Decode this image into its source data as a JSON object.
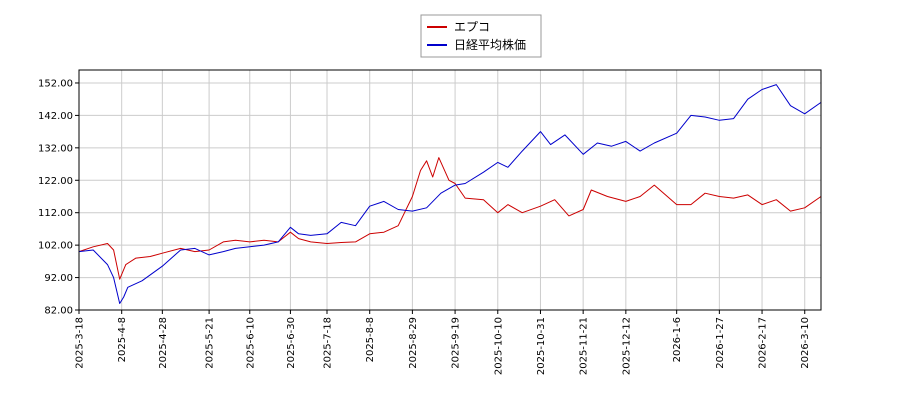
{
  "chart_data": {
    "type": "line",
    "title": "",
    "xlabel": "",
    "ylabel": "",
    "ylim": [
      82,
      156
    ],
    "yticks": [
      "82.00",
      "92.00",
      "102.00",
      "112.00",
      "122.00",
      "132.00",
      "142.00",
      "152.00"
    ],
    "xticks": [
      "2025-3-18",
      "2025-4-8",
      "2025-4-28",
      "2025-5-21",
      "2025-6-10",
      "2025-6-30",
      "2025-7-18",
      "2025-8-8",
      "2025-8-29",
      "2025-9-19",
      "2025-10-10",
      "2025-10-31",
      "2025-11-21",
      "2025-12-12",
      "2026-1-6",
      "2026-1-27",
      "2026-2-17",
      "2026-3-10"
    ],
    "grid": true,
    "legend_position": "top-center",
    "series": [
      {
        "name": "エプコ",
        "color": "#cc0000",
        "points": [
          [
            "2025-3-18",
            100.0
          ],
          [
            "2025-3-25",
            101.5
          ],
          [
            "2025-4-1",
            102.5
          ],
          [
            "2025-4-4",
            100.5
          ],
          [
            "2025-4-7",
            91.5
          ],
          [
            "2025-4-10",
            96.0
          ],
          [
            "2025-4-15",
            98.0
          ],
          [
            "2025-4-22",
            98.5
          ],
          [
            "2025-4-28",
            99.5
          ],
          [
            "2025-5-7",
            101.0
          ],
          [
            "2025-5-14",
            100.0
          ],
          [
            "2025-5-21",
            100.5
          ],
          [
            "2025-5-28",
            103.0
          ],
          [
            "2025-6-3",
            103.5
          ],
          [
            "2025-6-10",
            103.0
          ],
          [
            "2025-6-17",
            103.5
          ],
          [
            "2025-6-24",
            103.0
          ],
          [
            "2025-6-30",
            106.0
          ],
          [
            "2025-7-4",
            104.0
          ],
          [
            "2025-7-10",
            103.0
          ],
          [
            "2025-7-18",
            102.5
          ],
          [
            "2025-7-25",
            102.8
          ],
          [
            "2025-8-1",
            103.0
          ],
          [
            "2025-8-8",
            105.5
          ],
          [
            "2025-8-15",
            106.0
          ],
          [
            "2025-8-22",
            108.0
          ],
          [
            "2025-8-29",
            117.0
          ],
          [
            "2025-9-2",
            125.0
          ],
          [
            "2025-9-5",
            128.0
          ],
          [
            "2025-9-8",
            123.0
          ],
          [
            "2025-9-11",
            129.0
          ],
          [
            "2025-9-16",
            122.0
          ],
          [
            "2025-9-19",
            121.0
          ],
          [
            "2025-9-24",
            116.5
          ],
          [
            "2025-10-3",
            116.0
          ],
          [
            "2025-10-10",
            112.0
          ],
          [
            "2025-10-15",
            114.5
          ],
          [
            "2025-10-22",
            112.0
          ],
          [
            "2025-10-31",
            114.0
          ],
          [
            "2025-11-7",
            116.0
          ],
          [
            "2025-11-14",
            111.0
          ],
          [
            "2025-11-21",
            113.0
          ],
          [
            "2025-11-25",
            119.0
          ],
          [
            "2025-12-3",
            117.0
          ],
          [
            "2025-12-12",
            115.5
          ],
          [
            "2025-12-19",
            117.0
          ],
          [
            "2025-12-26",
            120.5
          ],
          [
            "2026-1-6",
            114.5
          ],
          [
            "2026-1-13",
            114.5
          ],
          [
            "2026-1-20",
            118.0
          ],
          [
            "2026-1-27",
            117.0
          ],
          [
            "2026-2-3",
            116.5
          ],
          [
            "2026-2-10",
            117.5
          ],
          [
            "2026-2-17",
            114.5
          ],
          [
            "2026-2-24",
            116.0
          ],
          [
            "2026-3-3",
            112.5
          ],
          [
            "2026-3-10",
            113.5
          ],
          [
            "2026-3-18",
            117.0
          ]
        ]
      },
      {
        "name": "日経平均株価",
        "color": "#0000cc",
        "points": [
          [
            "2025-3-18",
            100.0
          ],
          [
            "2025-3-25",
            100.5
          ],
          [
            "2025-4-1",
            96.0
          ],
          [
            "2025-4-4",
            92.0
          ],
          [
            "2025-4-7",
            84.0
          ],
          [
            "2025-4-9",
            86.0
          ],
          [
            "2025-4-11",
            89.0
          ],
          [
            "2025-4-18",
            91.0
          ],
          [
            "2025-4-28",
            95.5
          ],
          [
            "2025-5-7",
            100.5
          ],
          [
            "2025-5-14",
            101.0
          ],
          [
            "2025-5-21",
            99.0
          ],
          [
            "2025-5-28",
            100.0
          ],
          [
            "2025-6-3",
            101.0
          ],
          [
            "2025-6-10",
            101.5
          ],
          [
            "2025-6-17",
            102.0
          ],
          [
            "2025-6-24",
            103.0
          ],
          [
            "2025-6-30",
            107.5
          ],
          [
            "2025-7-4",
            105.5
          ],
          [
            "2025-7-10",
            105.0
          ],
          [
            "2025-7-18",
            105.5
          ],
          [
            "2025-7-25",
            109.0
          ],
          [
            "2025-8-1",
            108.0
          ],
          [
            "2025-8-8",
            114.0
          ],
          [
            "2025-8-15",
            115.5
          ],
          [
            "2025-8-22",
            113.0
          ],
          [
            "2025-8-29",
            112.5
          ],
          [
            "2025-9-5",
            113.5
          ],
          [
            "2025-9-12",
            118.0
          ],
          [
            "2025-9-19",
            120.5
          ],
          [
            "2025-9-24",
            121.0
          ],
          [
            "2025-10-3",
            124.5
          ],
          [
            "2025-10-10",
            127.5
          ],
          [
            "2025-10-15",
            126.0
          ],
          [
            "2025-10-22",
            131.0
          ],
          [
            "2025-10-31",
            137.0
          ],
          [
            "2025-11-5",
            133.0
          ],
          [
            "2025-11-12",
            136.0
          ],
          [
            "2025-11-21",
            130.0
          ],
          [
            "2025-11-28",
            133.5
          ],
          [
            "2025-12-5",
            132.5
          ],
          [
            "2025-12-12",
            134.0
          ],
          [
            "2025-12-19",
            131.0
          ],
          [
            "2025-12-26",
            133.5
          ],
          [
            "2026-1-6",
            136.5
          ],
          [
            "2026-1-13",
            142.0
          ],
          [
            "2026-1-20",
            141.5
          ],
          [
            "2026-1-27",
            140.5
          ],
          [
            "2026-2-3",
            141.0
          ],
          [
            "2026-2-10",
            147.0
          ],
          [
            "2026-2-17",
            150.0
          ],
          [
            "2026-2-24",
            151.5
          ],
          [
            "2026-3-3",
            145.0
          ],
          [
            "2026-3-10",
            142.5
          ],
          [
            "2026-3-18",
            146.0
          ]
        ]
      }
    ]
  }
}
